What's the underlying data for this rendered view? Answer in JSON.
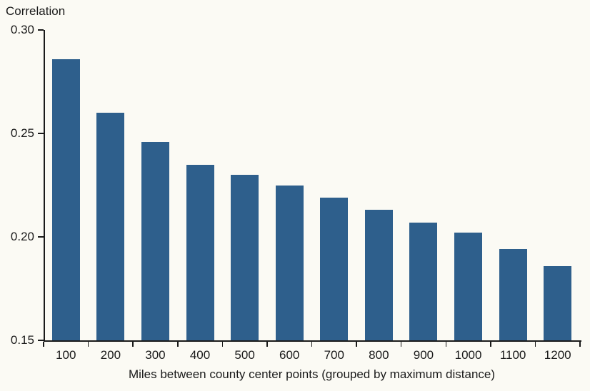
{
  "chart_data": {
    "type": "bar",
    "title": "",
    "ylabel": "Correlation",
    "xlabel": "Miles between county center points (grouped by maximum distance)",
    "categories": [
      "100",
      "200",
      "300",
      "400",
      "500",
      "600",
      "700",
      "800",
      "900",
      "1000",
      "1100",
      "1200"
    ],
    "values": [
      0.286,
      0.26,
      0.246,
      0.235,
      0.23,
      0.225,
      0.219,
      0.213,
      0.207,
      0.202,
      0.194,
      0.186
    ],
    "ylim": [
      0.15,
      0.3
    ],
    "yticks": [
      0.3,
      0.25,
      0.2,
      0.15
    ],
    "ytick_labels": [
      "0.30",
      "0.25",
      "0.20",
      "0.15"
    ],
    "grid": false,
    "legend": "none",
    "colors": {
      "bar": "#2E5F8C",
      "background": "#FBFAF4",
      "text": "#1A1A1A",
      "axis": "#1A1A1A"
    }
  }
}
